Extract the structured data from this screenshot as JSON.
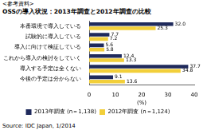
{
  "chart_data": {
    "type": "bar",
    "orientation": "horizontal",
    "title": "OSSの導入状況：2013年調査と2012年調査の比較",
    "annotations": [
      "<参考資料>",
      "Source: IDC Japan, 1/2014"
    ],
    "x_label": "(%)",
    "categories": [
      "本番環境で導入している",
      "試験的に導入している",
      "導入に向けて検証している",
      "これから導入の検討をしていく",
      "導入する予定は全くない",
      "今後の予定は分からない"
    ],
    "series": [
      {
        "name": "2013年調査 (n＝1,138)",
        "color": "#1f2a5c",
        "values": [
          32.0,
          7.7,
          5.6,
          12.4,
          37.7,
          9.1
        ],
        "value_labels": [
          "32.0",
          "7.7",
          "5.6",
          "12.4",
          "37.7",
          "9.1"
        ]
      },
      {
        "name": "2012年調査 (n＝1,124)",
        "color": "#f2cf3a",
        "values": [
          25.3,
          7.2,
          5.8,
          13.3,
          34.8,
          13.6
        ],
        "value_labels": [
          "25.3",
          "7.2",
          "5.8",
          "13.3",
          "34.8",
          "13.6"
        ]
      }
    ],
    "xlim": [
      0,
      40
    ],
    "xticks": [
      0,
      10,
      20,
      30,
      40
    ],
    "grid": false,
    "legend": "bottom",
    "data_labels": true
  }
}
